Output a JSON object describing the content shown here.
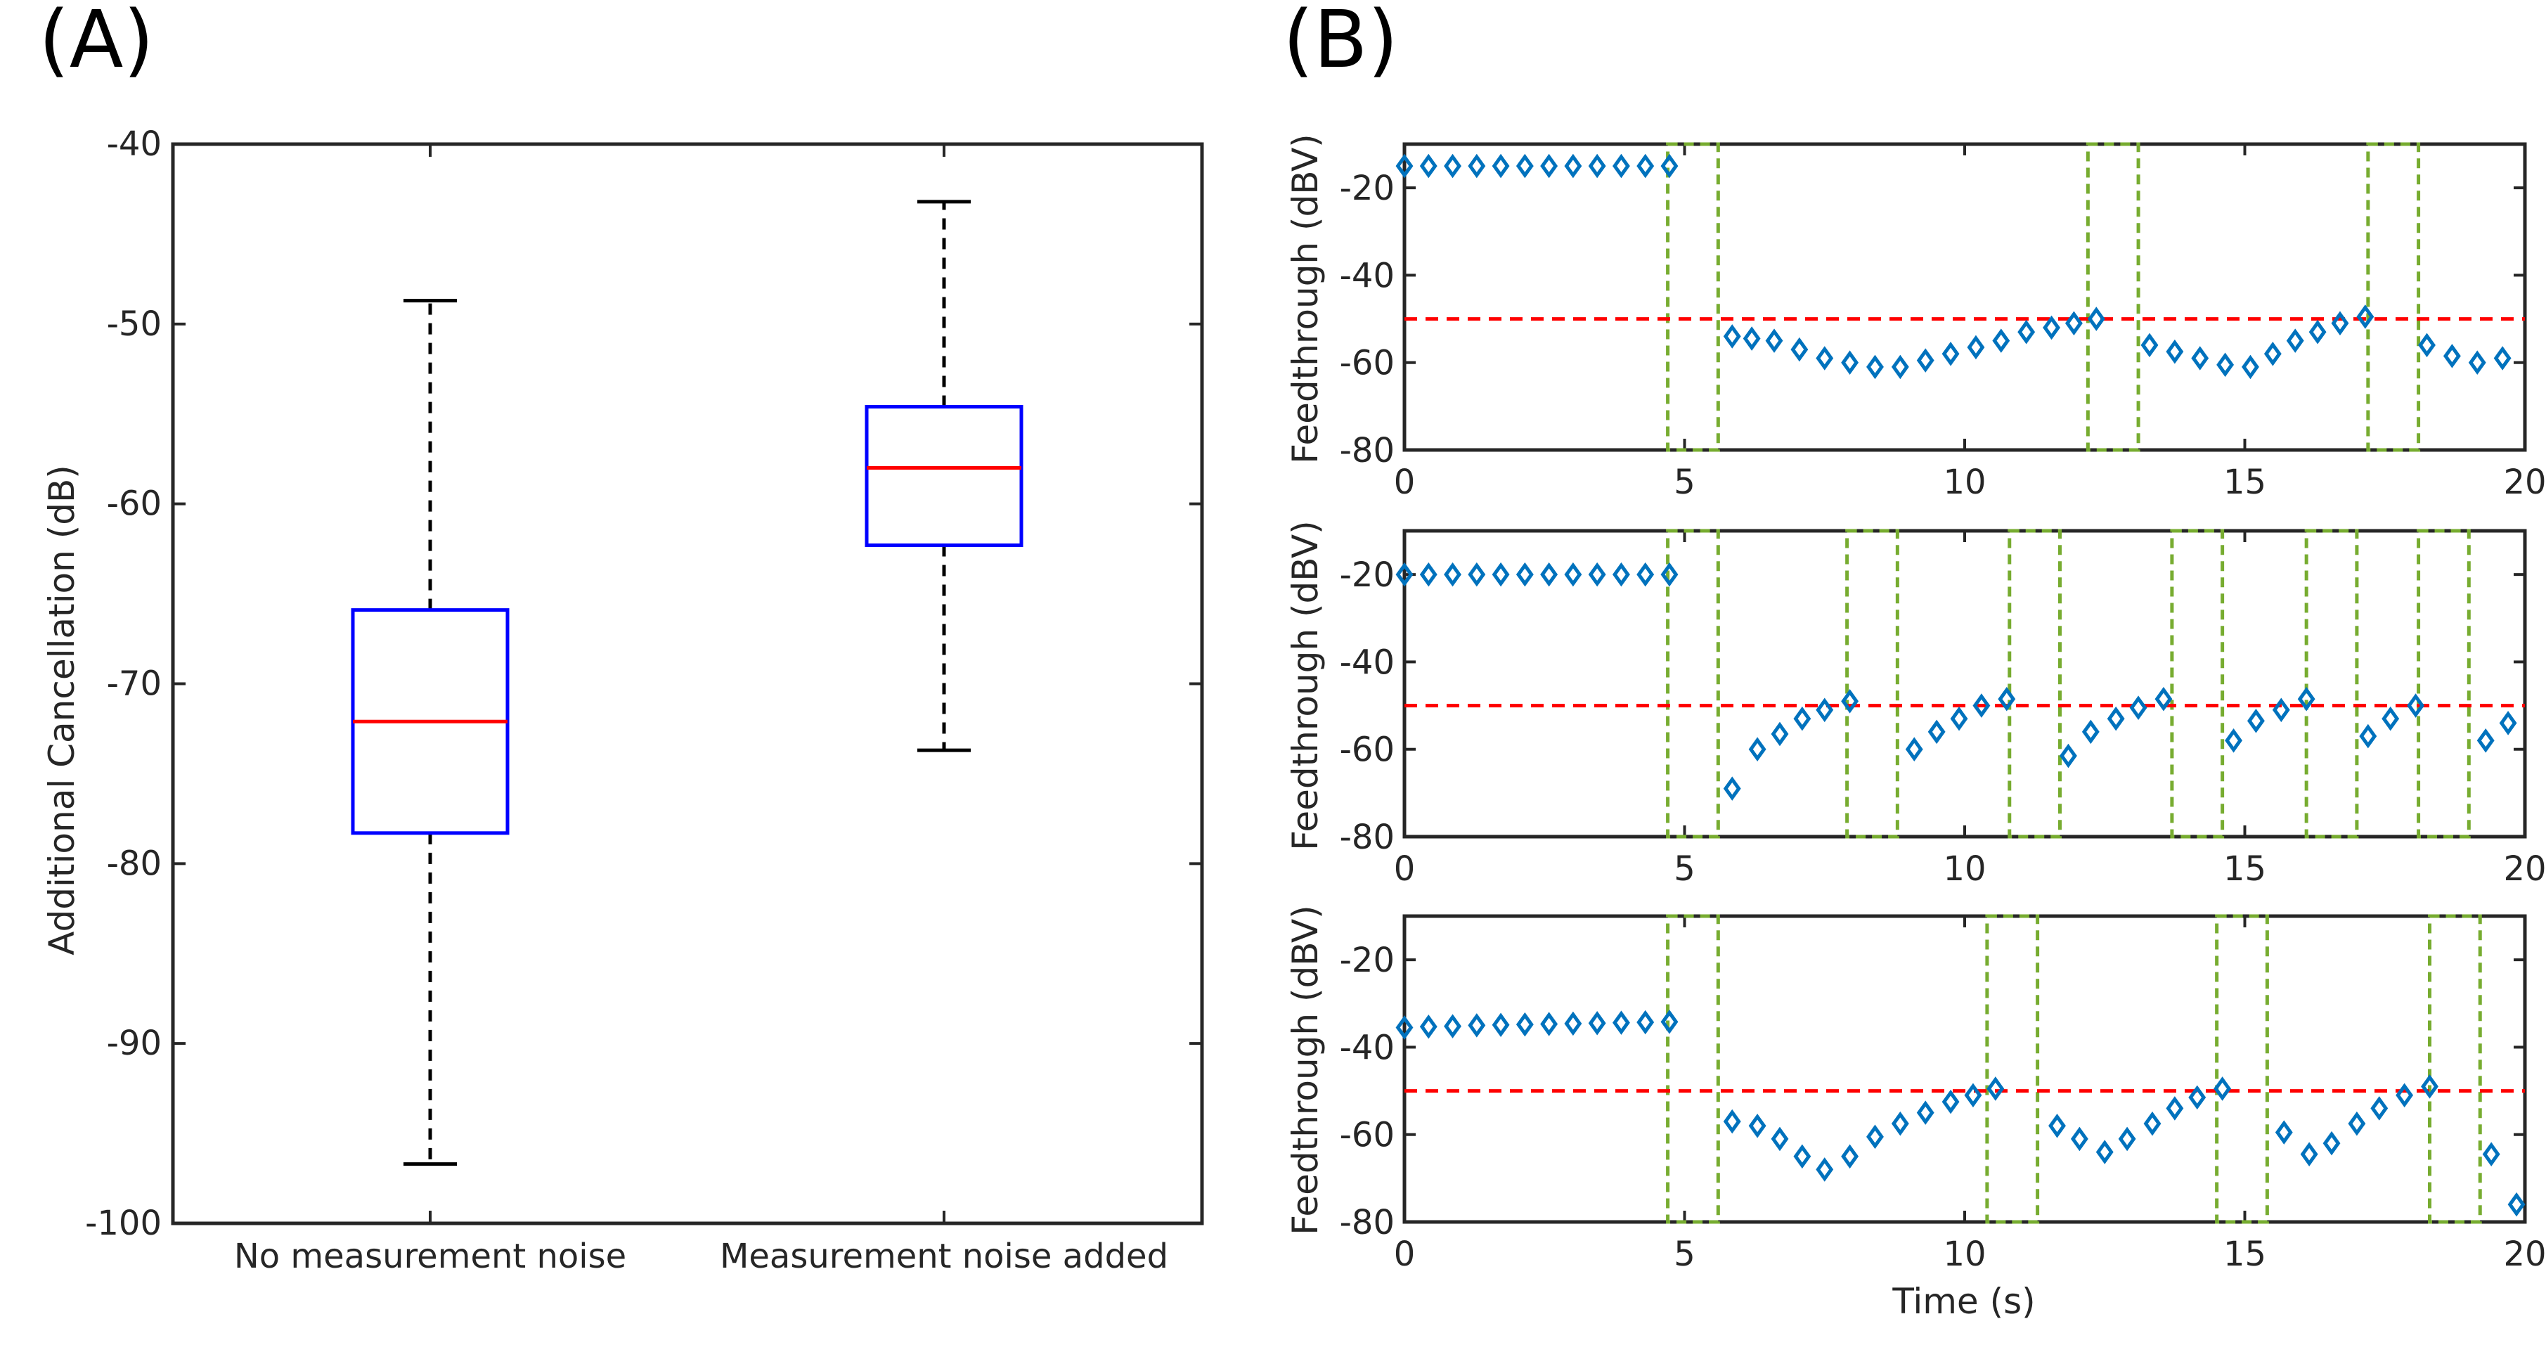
{
  "panels": {
    "A": {
      "label": "(A)",
      "chart_data": {
        "type": "box",
        "ylabel": "Additional Cancellation (dB)",
        "ylim": [
          -100,
          -40
        ],
        "yticks": [
          -40,
          -50,
          -60,
          -70,
          -80,
          -90,
          -100
        ],
        "categories": [
          "No measurement noise",
          "Measurement noise added"
        ],
        "boxes": [
          {
            "whisker_low": -96.7,
            "q1": -78.3,
            "median": -72.1,
            "q3": -65.9,
            "whisker_high": -48.7
          },
          {
            "whisker_low": -73.7,
            "q1": -62.3,
            "median": -58.0,
            "q3": -54.6,
            "whisker_high": -43.2
          }
        ],
        "colors": {
          "box": "#0000ff",
          "median": "#ff0000",
          "whisker": "#000000"
        }
      }
    },
    "B": {
      "label": "(B)",
      "chart_data": [
        {
          "type": "scatter",
          "ylabel": "Feedthrough (dBV)",
          "xlim": [
            0,
            20
          ],
          "ylim": [
            -80,
            -10
          ],
          "xticks": [
            0,
            5,
            10,
            15,
            20
          ],
          "yticks": [
            -20,
            -40,
            -60,
            -80
          ],
          "threshold": -50,
          "points": [
            [
              0,
              -15
            ],
            [
              0.43,
              -15
            ],
            [
              0.86,
              -15
            ],
            [
              1.29,
              -15
            ],
            [
              1.72,
              -15
            ],
            [
              2.15,
              -15
            ],
            [
              2.58,
              -15
            ],
            [
              3.01,
              -15
            ],
            [
              3.44,
              -15
            ],
            [
              3.87,
              -15
            ],
            [
              4.3,
              -15
            ],
            [
              4.73,
              -15
            ],
            [
              5.85,
              -54
            ],
            [
              6.2,
              -54.5
            ],
            [
              6.6,
              -55
            ],
            [
              7.05,
              -57
            ],
            [
              7.5,
              -59
            ],
            [
              7.95,
              -60
            ],
            [
              8.4,
              -61
            ],
            [
              8.85,
              -61
            ],
            [
              9.3,
              -59.5
            ],
            [
              9.75,
              -58
            ],
            [
              10.2,
              -56.5
            ],
            [
              10.65,
              -55
            ],
            [
              11.1,
              -53
            ],
            [
              11.55,
              -52
            ],
            [
              11.95,
              -51
            ],
            [
              12.35,
              -50
            ],
            [
              13.3,
              -56
            ],
            [
              13.75,
              -57.5
            ],
            [
              14.2,
              -59
            ],
            [
              14.65,
              -60.5
            ],
            [
              15.1,
              -61
            ],
            [
              15.5,
              -58
            ],
            [
              15.9,
              -55
            ],
            [
              16.3,
              -53
            ],
            [
              16.7,
              -51
            ],
            [
              17.15,
              -49.5
            ],
            [
              18.25,
              -56
            ],
            [
              18.7,
              -58.5
            ],
            [
              19.15,
              -60
            ],
            [
              19.6,
              -59
            ]
          ],
          "windows": [
            [
              4.7,
              5.6
            ],
            [
              12.2,
              13.1
            ],
            [
              17.2,
              18.1
            ]
          ],
          "colors": {
            "points": "#0072bd",
            "threshold": "#ff0000",
            "window": "#77ac30"
          }
        },
        {
          "type": "scatter",
          "ylabel": "Feedthrough (dBV)",
          "xlim": [
            0,
            20
          ],
          "ylim": [
            -80,
            -10
          ],
          "xticks": [
            0,
            5,
            10,
            15,
            20
          ],
          "yticks": [
            -20,
            -40,
            -60,
            -80
          ],
          "threshold": -50,
          "points": [
            [
              0,
              -20
            ],
            [
              0.43,
              -20
            ],
            [
              0.86,
              -20
            ],
            [
              1.29,
              -20
            ],
            [
              1.72,
              -20
            ],
            [
              2.15,
              -20
            ],
            [
              2.58,
              -20
            ],
            [
              3.01,
              -20
            ],
            [
              3.44,
              -20
            ],
            [
              3.87,
              -20
            ],
            [
              4.3,
              -20
            ],
            [
              4.73,
              -20
            ],
            [
              5.85,
              -69
            ],
            [
              6.3,
              -60
            ],
            [
              6.7,
              -56.5
            ],
            [
              7.1,
              -53
            ],
            [
              7.5,
              -51
            ],
            [
              7.95,
              -49
            ],
            [
              9.1,
              -60
            ],
            [
              9.5,
              -56
            ],
            [
              9.9,
              -53
            ],
            [
              10.3,
              -50
            ],
            [
              10.75,
              -48.5
            ],
            [
              11.85,
              -61.5
            ],
            [
              12.25,
              -56
            ],
            [
              12.7,
              -53
            ],
            [
              13.1,
              -50.5
            ],
            [
              13.55,
              -48.5
            ],
            [
              14.8,
              -58
            ],
            [
              15.2,
              -53.5
            ],
            [
              15.65,
              -51
            ],
            [
              16.1,
              -48.5
            ],
            [
              17.2,
              -57
            ],
            [
              17.6,
              -53
            ],
            [
              18.05,
              -50
            ],
            [
              19.3,
              -58
            ],
            [
              19.7,
              -54
            ]
          ],
          "windows": [
            [
              4.7,
              5.6
            ],
            [
              7.9,
              8.8
            ],
            [
              10.8,
              11.7
            ],
            [
              13.7,
              14.6
            ],
            [
              16.1,
              17.0
            ],
            [
              18.1,
              19.0
            ]
          ],
          "colors": {
            "points": "#0072bd",
            "threshold": "#ff0000",
            "window": "#77ac30"
          }
        },
        {
          "type": "scatter",
          "ylabel": "Feedthrough (dBV)",
          "xlabel": "Time (s)",
          "xlim": [
            0,
            20
          ],
          "ylim": [
            -80,
            -10
          ],
          "xticks": [
            0,
            5,
            10,
            15,
            20
          ],
          "yticks": [
            -20,
            -40,
            -60,
            -80
          ],
          "threshold": -50,
          "points": [
            [
              0,
              -35.5
            ],
            [
              0.43,
              -35.3
            ],
            [
              0.86,
              -35.2
            ],
            [
              1.29,
              -35
            ],
            [
              1.72,
              -34.9
            ],
            [
              2.15,
              -34.8
            ],
            [
              2.58,
              -34.7
            ],
            [
              3.01,
              -34.6
            ],
            [
              3.44,
              -34.5
            ],
            [
              3.87,
              -34.4
            ],
            [
              4.3,
              -34.3
            ],
            [
              4.73,
              -34.2
            ],
            [
              5.85,
              -57
            ],
            [
              6.3,
              -58
            ],
            [
              6.7,
              -61
            ],
            [
              7.1,
              -65
            ],
            [
              7.5,
              -68
            ],
            [
              7.95,
              -65
            ],
            [
              8.4,
              -60.5
            ],
            [
              8.85,
              -57.5
            ],
            [
              9.3,
              -55
            ],
            [
              9.75,
              -52.5
            ],
            [
              10.15,
              -51
            ],
            [
              10.55,
              -49.5
            ],
            [
              11.65,
              -58
            ],
            [
              12.05,
              -61
            ],
            [
              12.5,
              -64
            ],
            [
              12.9,
              -61
            ],
            [
              13.35,
              -57.5
            ],
            [
              13.75,
              -54
            ],
            [
              14.15,
              -51.5
            ],
            [
              14.6,
              -49.5
            ],
            [
              15.7,
              -59.5
            ],
            [
              16.15,
              -64.5
            ],
            [
              16.55,
              -62
            ],
            [
              17.0,
              -57.5
            ],
            [
              17.4,
              -54
            ],
            [
              17.85,
              -51
            ],
            [
              18.3,
              -49
            ],
            [
              19.4,
              -64.5
            ],
            [
              19.85,
              -76
            ]
          ],
          "windows": [
            [
              4.7,
              5.6
            ],
            [
              10.4,
              11.3
            ],
            [
              14.5,
              15.4
            ],
            [
              18.3,
              19.2
            ]
          ],
          "colors": {
            "points": "#0072bd",
            "threshold": "#ff0000",
            "window": "#77ac30"
          }
        }
      ]
    }
  }
}
